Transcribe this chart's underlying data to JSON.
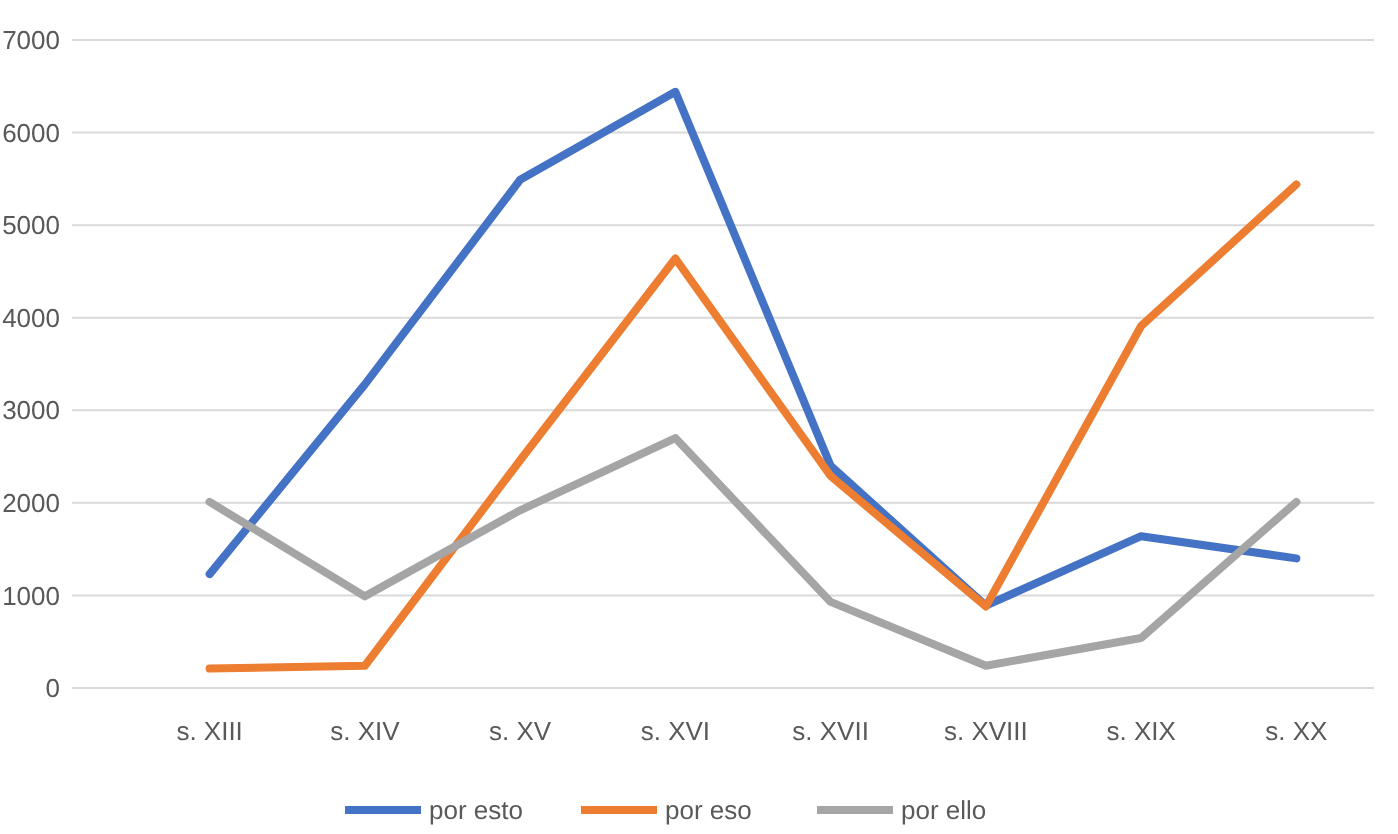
{
  "chart_data": {
    "type": "line",
    "categories": [
      "s. XIII",
      "s. XIV",
      "s. XV",
      "s. XVI",
      "s. XVII",
      "s. XVIII",
      "s. XIX",
      "s. XX"
    ],
    "series": [
      {
        "name": "por esto",
        "color": "#4472c4",
        "values": [
          1230,
          3280,
          5490,
          6440,
          2400,
          890,
          1640,
          1400
        ]
      },
      {
        "name": "por eso",
        "color": "#ed7d31",
        "values": [
          210,
          240,
          2460,
          4640,
          2290,
          880,
          3910,
          5440
        ]
      },
      {
        "name": "por ello",
        "color": "#a5a5a5",
        "values": [
          2010,
          990,
          1920,
          2700,
          930,
          240,
          540,
          2010
        ]
      }
    ],
    "ylim": [
      0,
      7000
    ],
    "yticks": [
      0,
      1000,
      2000,
      3000,
      4000,
      5000,
      6000,
      7000
    ],
    "grid": "y",
    "legend": "bottom",
    "marker": "none",
    "line_style": "solid"
  }
}
